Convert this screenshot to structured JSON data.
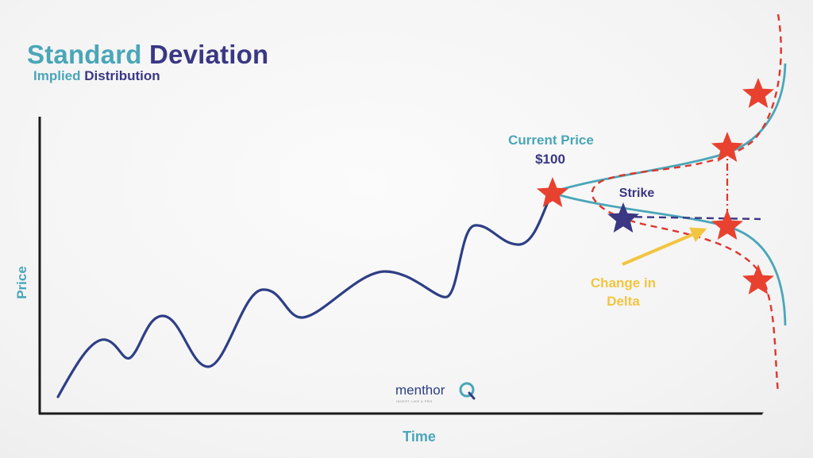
{
  "title": {
    "part1": "Standard",
    "part2": "Deviation"
  },
  "subtitle": {
    "part1": "Implied",
    "part2": "Distribution"
  },
  "axes": {
    "y_label": "Price",
    "x_label": "Time"
  },
  "annotations": {
    "current_price_line1": "Current Price",
    "current_price_line2": "$100",
    "strike": "Strike",
    "change_in_delta_line1": "Change in",
    "change_in_delta_line2": "Delta"
  },
  "logo": {
    "text": "menthor",
    "mark": "Q",
    "tagline": "INVEST LIKE A PRO"
  },
  "colors": {
    "teal": "#4aa6b8",
    "navy": "#3a3784",
    "price_line": "#2e3f86",
    "star_red": "#e8412f",
    "dashed_red": "#e0342c",
    "arrow_yellow": "#f2c541",
    "axis": "#1a1a1a"
  },
  "icons": [
    "current-price-star-icon",
    "strike-star-icon",
    "distribution-star-icon",
    "arrow-icon",
    "logo-q-icon"
  ]
}
